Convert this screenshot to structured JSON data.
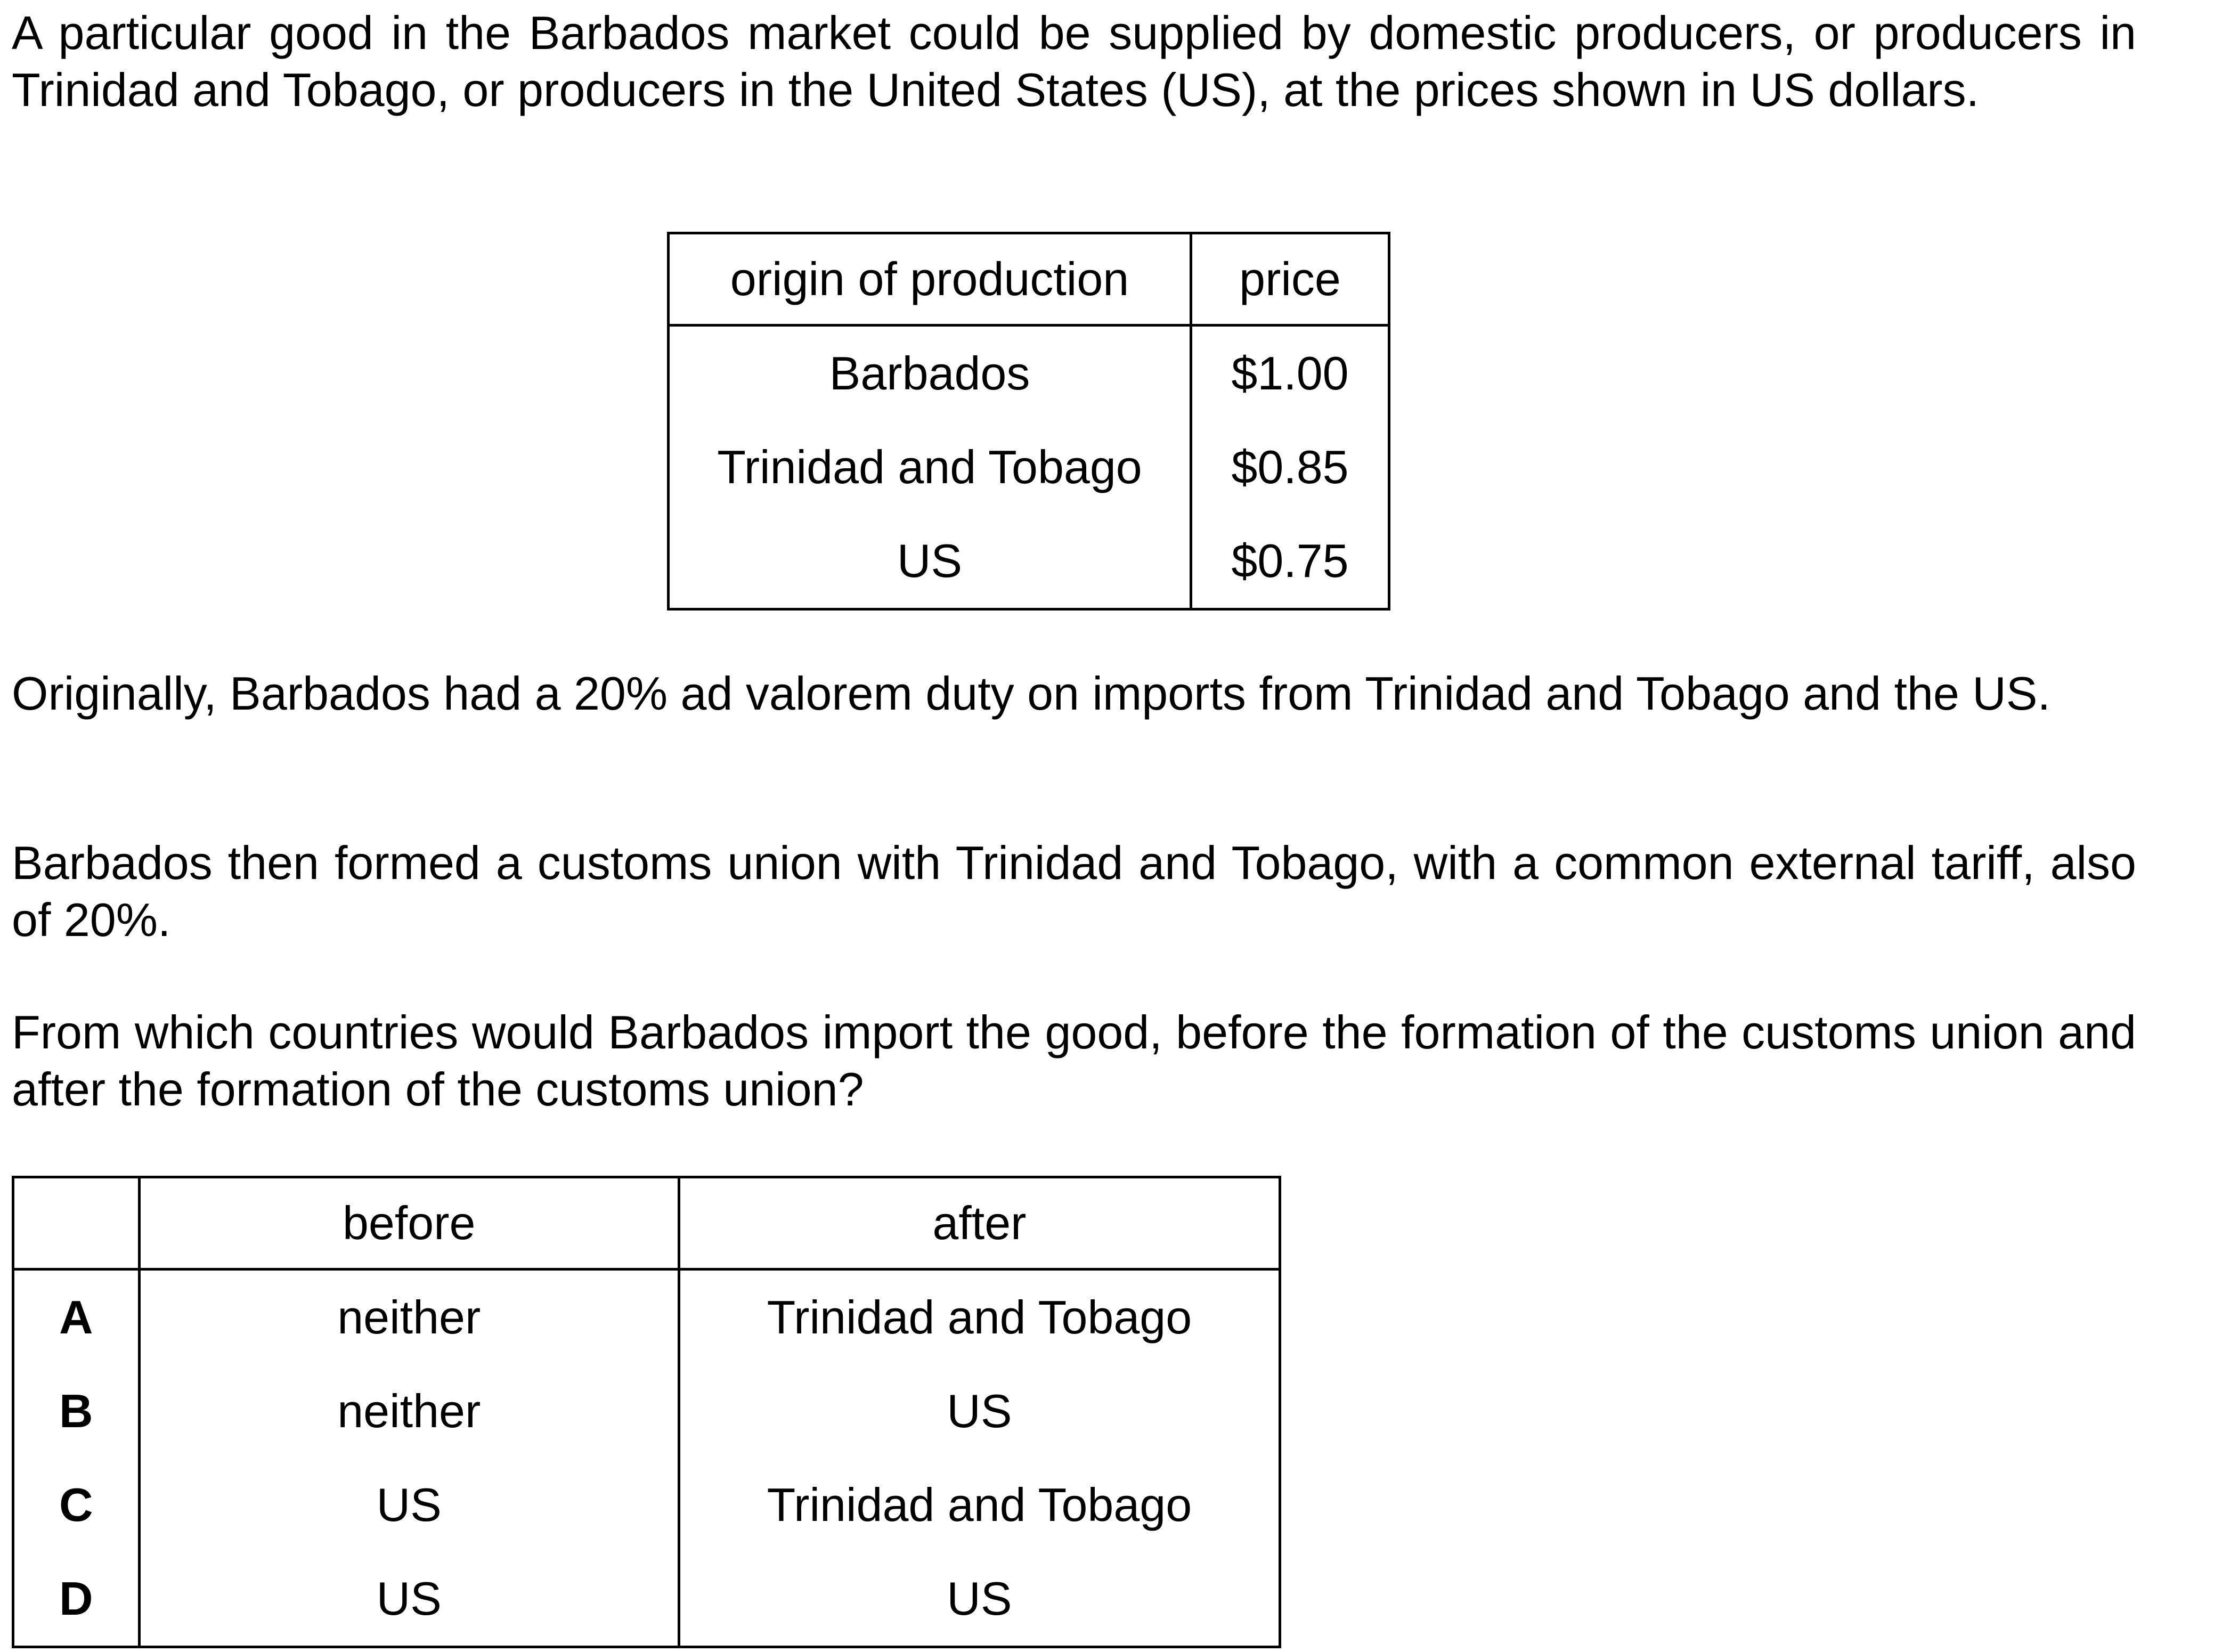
{
  "intro": "A particular good in the Barbados market could be supplied by domestic producers, or producers in Trinidad and Tobago, or producers in the United States (US), at the prices shown in US dollars.",
  "price_table": {
    "headers": {
      "origin": "origin of production",
      "price": "price"
    },
    "rows": [
      {
        "origin": "Barbados",
        "price": "$1.00"
      },
      {
        "origin": "Trinidad and Tobago",
        "price": "$0.85"
      },
      {
        "origin": "US",
        "price": "$0.75"
      }
    ]
  },
  "para_duty": "Originally, Barbados had a 20% ad valorem duty on imports from Trinidad and Tobago and the US.",
  "para_union": "Barbados then formed a customs union with Trinidad and Tobago, with a common external tariff, also of 20%.",
  "question": "From which countries would Barbados import the good, before the formation of the customs union and after the formation of the customs union?",
  "options_table": {
    "headers": {
      "letter": "",
      "before": "before",
      "after": "after"
    },
    "rows": [
      {
        "letter": "A",
        "before": "neither",
        "after": "Trinidad and Tobago"
      },
      {
        "letter": "B",
        "before": "neither",
        "after": "US"
      },
      {
        "letter": "C",
        "before": "US",
        "after": "Trinidad and Tobago"
      },
      {
        "letter": "D",
        "before": "US",
        "after": "US"
      }
    ]
  }
}
